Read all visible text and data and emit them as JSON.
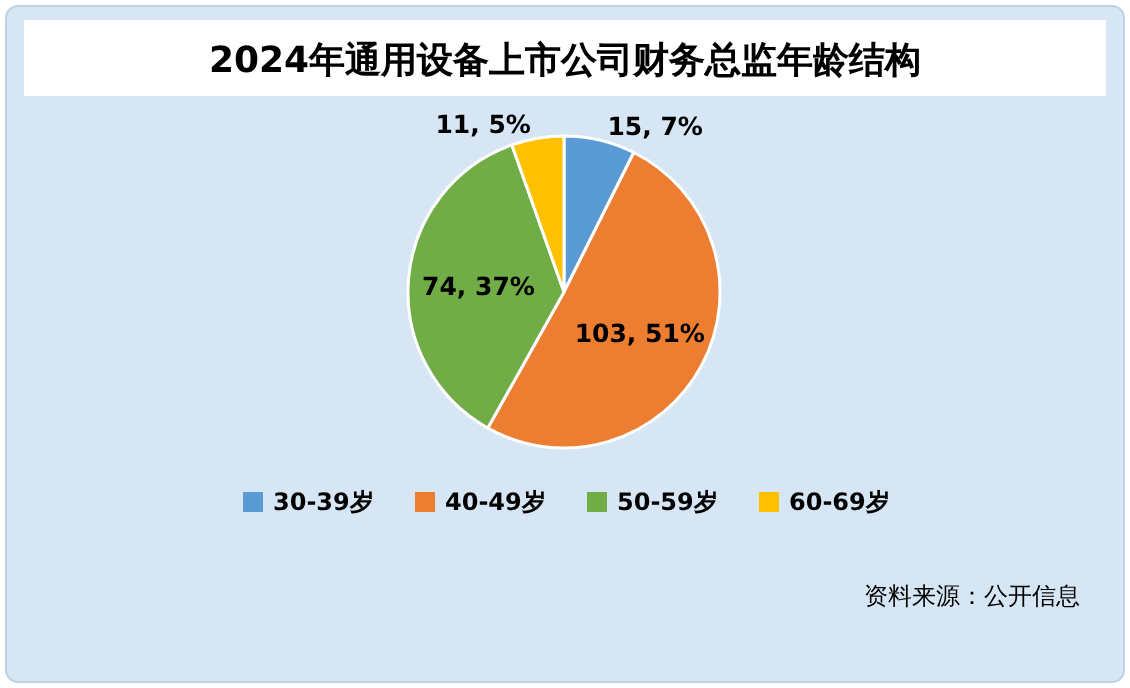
{
  "chart_data": {
    "type": "pie",
    "title": "2024年通用设备上市公司财务总监年龄结构",
    "categories": [
      "30-39岁",
      "40-49岁",
      "50-59岁",
      "60-69岁"
    ],
    "values": [
      15,
      103,
      74,
      11
    ],
    "colors": [
      "#5b9bd5",
      "#ed7d31",
      "#70ad47",
      "#ffc000"
    ],
    "value_labels": [
      "15, 7%",
      "103, 51%",
      "74, 37%",
      "11, 5%"
    ],
    "legend": "bottom",
    "annotations": [
      "资料来源：公开信息"
    ]
  }
}
